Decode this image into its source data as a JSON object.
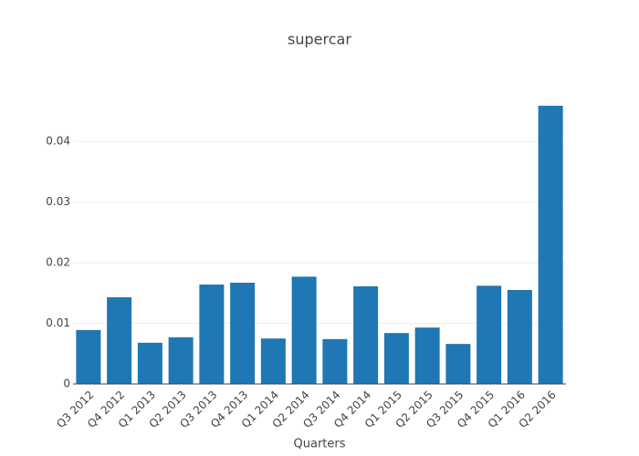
{
  "chart_data": {
    "type": "bar",
    "title": "supercar",
    "x_label": "Quarters",
    "categories": [
      "Q3 2012",
      "Q4 2012",
      "Q1 2013",
      "Q2 2013",
      "Q3 2013",
      "Q4 2013",
      "Q1 2014",
      "Q2 2014",
      "Q3 2014",
      "Q4 2014",
      "Q1 2015",
      "Q2 2015",
      "Q3 2015",
      "Q4 2015",
      "Q1 2016",
      "Q2 2016"
    ],
    "values": [
      0.0089,
      0.0143,
      0.0068,
      0.0077,
      0.0164,
      0.0167,
      0.0075,
      0.0177,
      0.0074,
      0.0161,
      0.0084,
      0.0093,
      0.0066,
      0.0162,
      0.0155,
      0.0459
    ],
    "color": "#1f77b4",
    "ylim": [
      0,
      0.0483
    ],
    "yticks": [
      0,
      0.01,
      0.02,
      0.03,
      0.04
    ],
    "grid": true
  }
}
